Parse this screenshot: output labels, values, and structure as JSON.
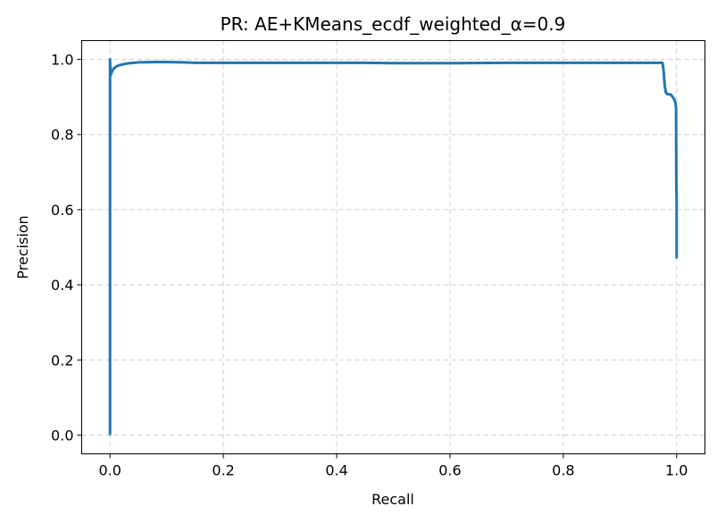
{
  "chart_data": {
    "type": "line",
    "title": "PR: AE+KMeans_ecdf_weighted_α=0.9",
    "xlabel": "Recall",
    "ylabel": "Precision",
    "xlim": [
      -0.05,
      1.05
    ],
    "ylim": [
      -0.05,
      1.05
    ],
    "x_ticks": [
      0.0,
      0.2,
      0.4,
      0.6,
      0.8,
      1.0
    ],
    "y_ticks": [
      0.0,
      0.2,
      0.4,
      0.6,
      0.8,
      1.0
    ],
    "x_tick_labels": [
      "0.0",
      "0.2",
      "0.4",
      "0.6",
      "0.8",
      "1.0"
    ],
    "y_tick_labels": [
      "0.0",
      "0.2",
      "0.4",
      "0.6",
      "0.8",
      "1.0"
    ],
    "grid": true,
    "series": [
      {
        "name": "PR curve",
        "color": "#1f77b4",
        "x": [
          0.0,
          0.0,
          0.0005,
          0.001,
          0.002,
          0.004,
          0.006,
          0.01,
          0.015,
          0.02,
          0.03,
          0.05,
          0.08,
          0.1,
          0.13,
          0.15,
          0.2,
          0.3,
          0.4,
          0.45,
          0.5,
          0.55,
          0.6,
          0.7,
          0.8,
          0.9,
          0.95,
          0.975,
          0.977,
          0.979,
          0.981,
          0.983,
          0.99,
          0.993,
          0.996,
          0.998,
          0.999,
          0.9995,
          1.0,
          1.0
        ],
        "y": [
          0.0,
          1.0,
          0.975,
          0.958,
          0.962,
          0.97,
          0.975,
          0.98,
          0.984,
          0.986,
          0.989,
          0.992,
          0.993,
          0.993,
          0.992,
          0.991,
          0.991,
          0.991,
          0.991,
          0.991,
          0.99,
          0.99,
          0.99,
          0.991,
          0.991,
          0.991,
          0.991,
          0.991,
          0.97,
          0.93,
          0.912,
          0.908,
          0.906,
          0.9,
          0.893,
          0.884,
          0.87,
          0.67,
          0.63,
          0.47
        ]
      }
    ]
  }
}
